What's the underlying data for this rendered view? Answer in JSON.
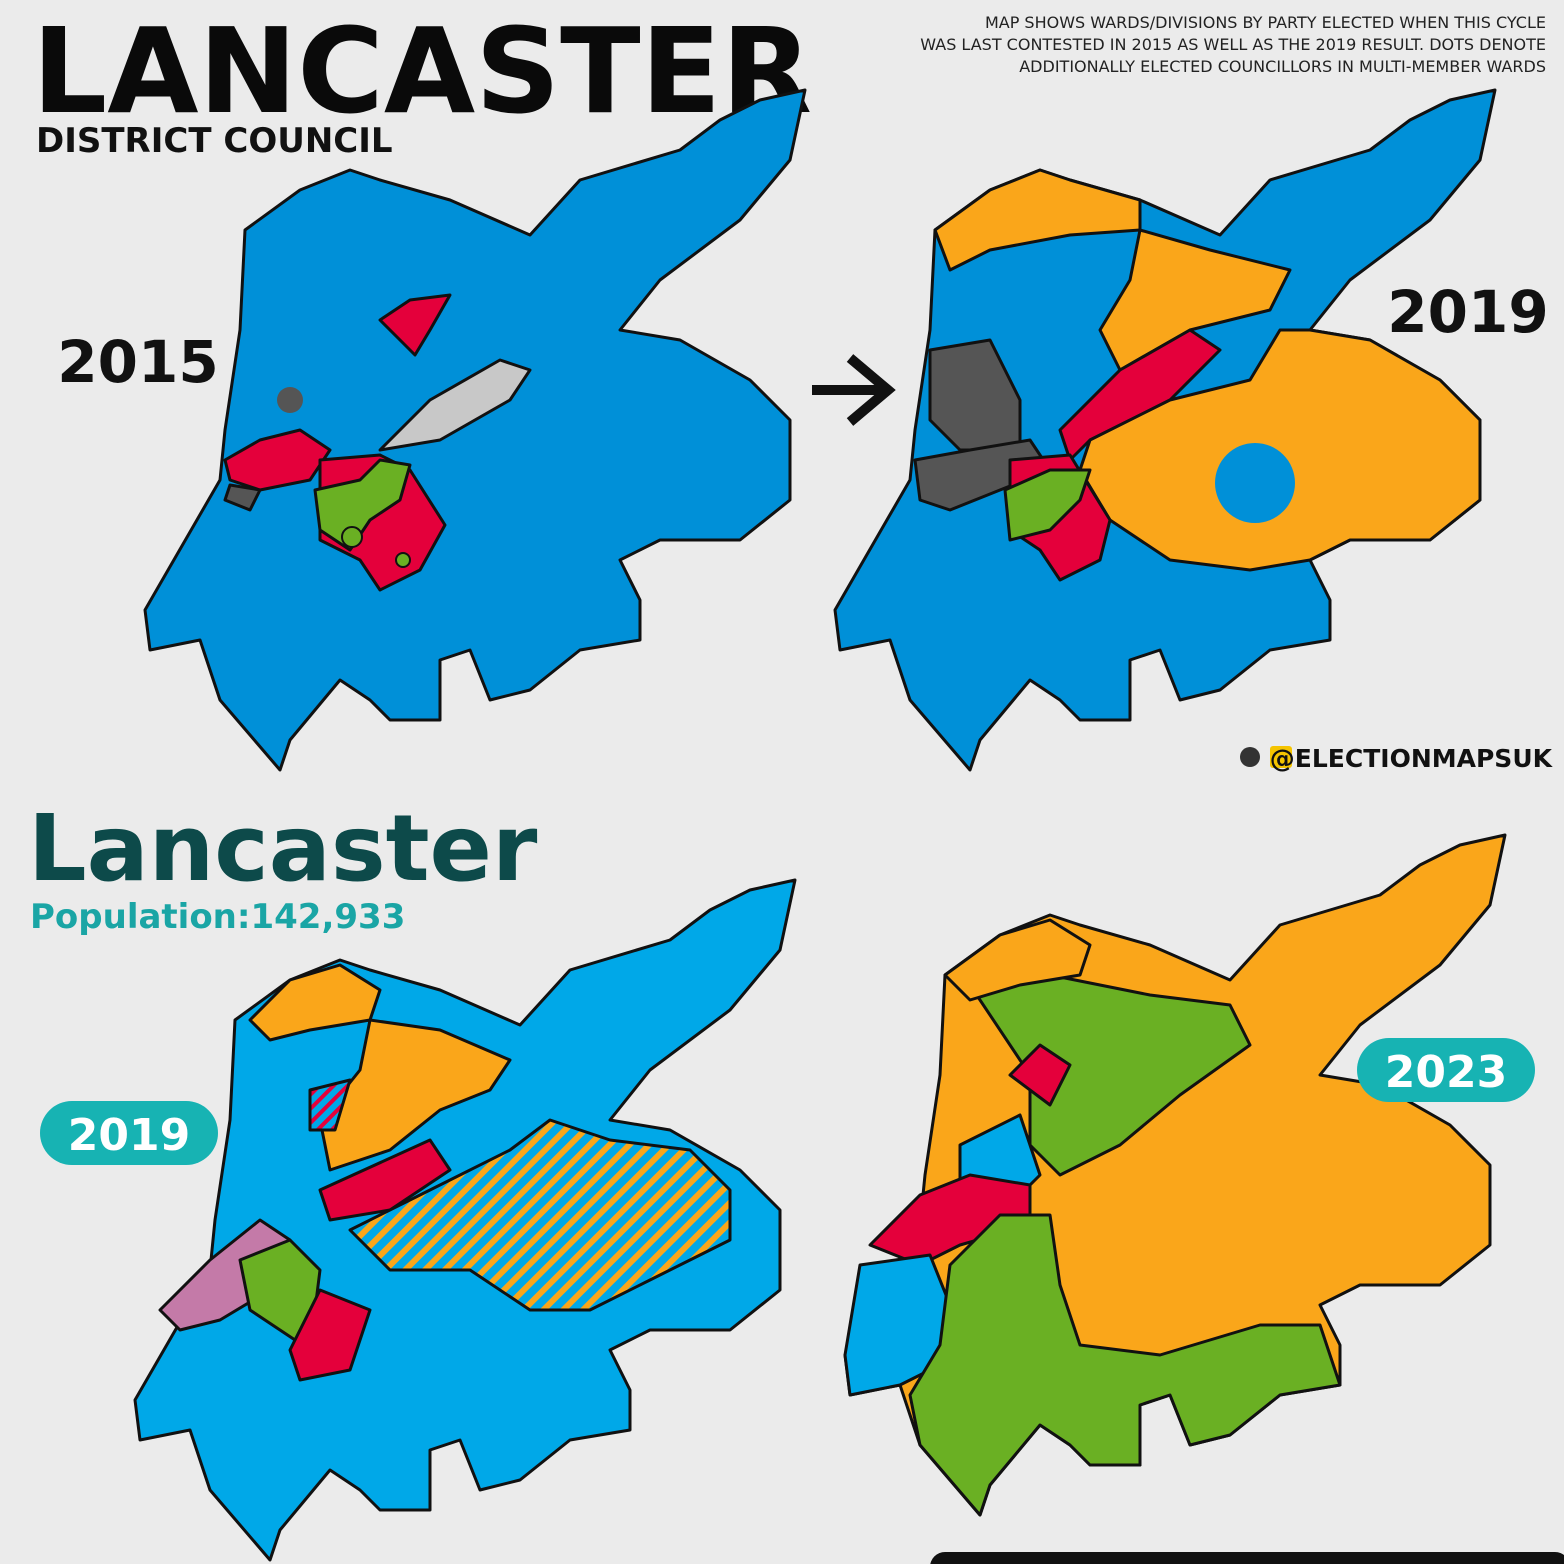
{
  "header": {
    "title": "LANCASTER",
    "subtitle": "DISTRICT COUNCIL",
    "note": [
      "MAP SHOWS WARDS/DIVISIONS BY PARTY ELECTED WHEN THIS CYCLE",
      "WAS LAST CONTESTED IN 2015 AS WELL AS THE 2019 RESULT. DOTS DENOTE",
      "ADDITIONALLY ELECTED COUNCILLORS IN MULTI-MEMBER WARDS"
    ]
  },
  "top_panel": {
    "label_left": "2015",
    "label_right": "2019",
    "credit": "@ELECTIONMAPSUK"
  },
  "bottom_panel": {
    "title": "Lancaster",
    "population": "Population:142,933",
    "label_left": "2019",
    "label_right": "2023"
  }
}
